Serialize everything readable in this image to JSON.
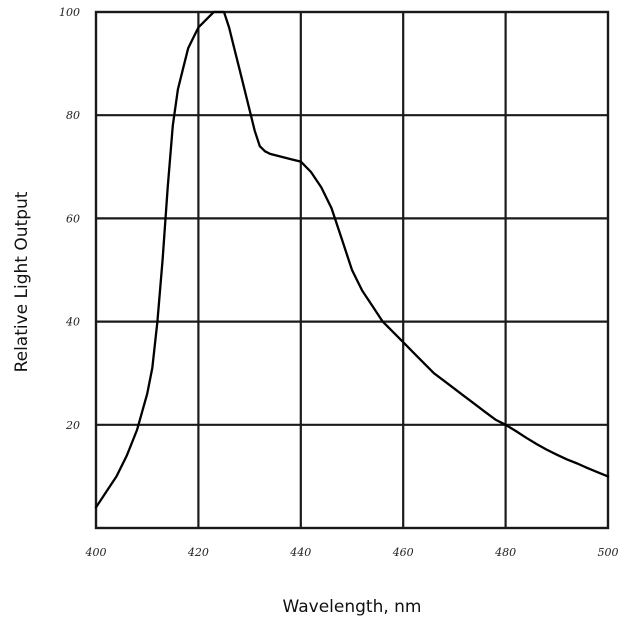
{
  "chart_data": {
    "type": "line",
    "title": "",
    "xlabel": "Wavelength, nm",
    "ylabel": "Relative Light Output",
    "xlim": [
      400,
      500
    ],
    "ylim": [
      0,
      100
    ],
    "grid": true,
    "x_ticks": [
      400,
      420,
      440,
      460,
      480,
      500
    ],
    "x_tick_labels": [
      "400",
      "420",
      "440",
      "460",
      "480",
      "500"
    ],
    "y_ticks": [
      20,
      40,
      60,
      80,
      100
    ],
    "y_tick_labels": [
      "20",
      "40",
      "60",
      "80",
      "100"
    ],
    "series": [
      {
        "x": [
          400,
          402,
          404,
          406,
          408,
          410,
          411,
          412,
          413,
          414,
          415,
          416,
          417,
          418,
          419,
          420,
          421,
          422,
          423,
          424,
          425,
          426,
          427,
          428,
          429,
          430,
          431,
          432,
          433,
          434,
          436,
          438,
          440,
          442,
          444,
          446,
          448,
          450,
          452,
          454,
          456,
          458,
          460,
          462,
          464,
          466,
          468,
          470,
          472,
          474,
          476,
          478,
          480,
          482,
          484,
          486,
          488,
          490,
          492,
          494,
          496,
          498,
          500
        ],
        "y": [
          4,
          7,
          10,
          14,
          19,
          26,
          31,
          40,
          52,
          66,
          78,
          85,
          89,
          93,
          95,
          97,
          98,
          99,
          100,
          100,
          100,
          97,
          93,
          89,
          85,
          81,
          77,
          74,
          73,
          72.5,
          72,
          71.5,
          71,
          69,
          66,
          62,
          56,
          50,
          46,
          43,
          40,
          38,
          36,
          34,
          32,
          30,
          28.5,
          27,
          25.5,
          24,
          22.5,
          21,
          20,
          18.8,
          17.5,
          16.3,
          15.2,
          14.2,
          13.3,
          12.5,
          11.6,
          10.8,
          10
        ]
      }
    ]
  }
}
